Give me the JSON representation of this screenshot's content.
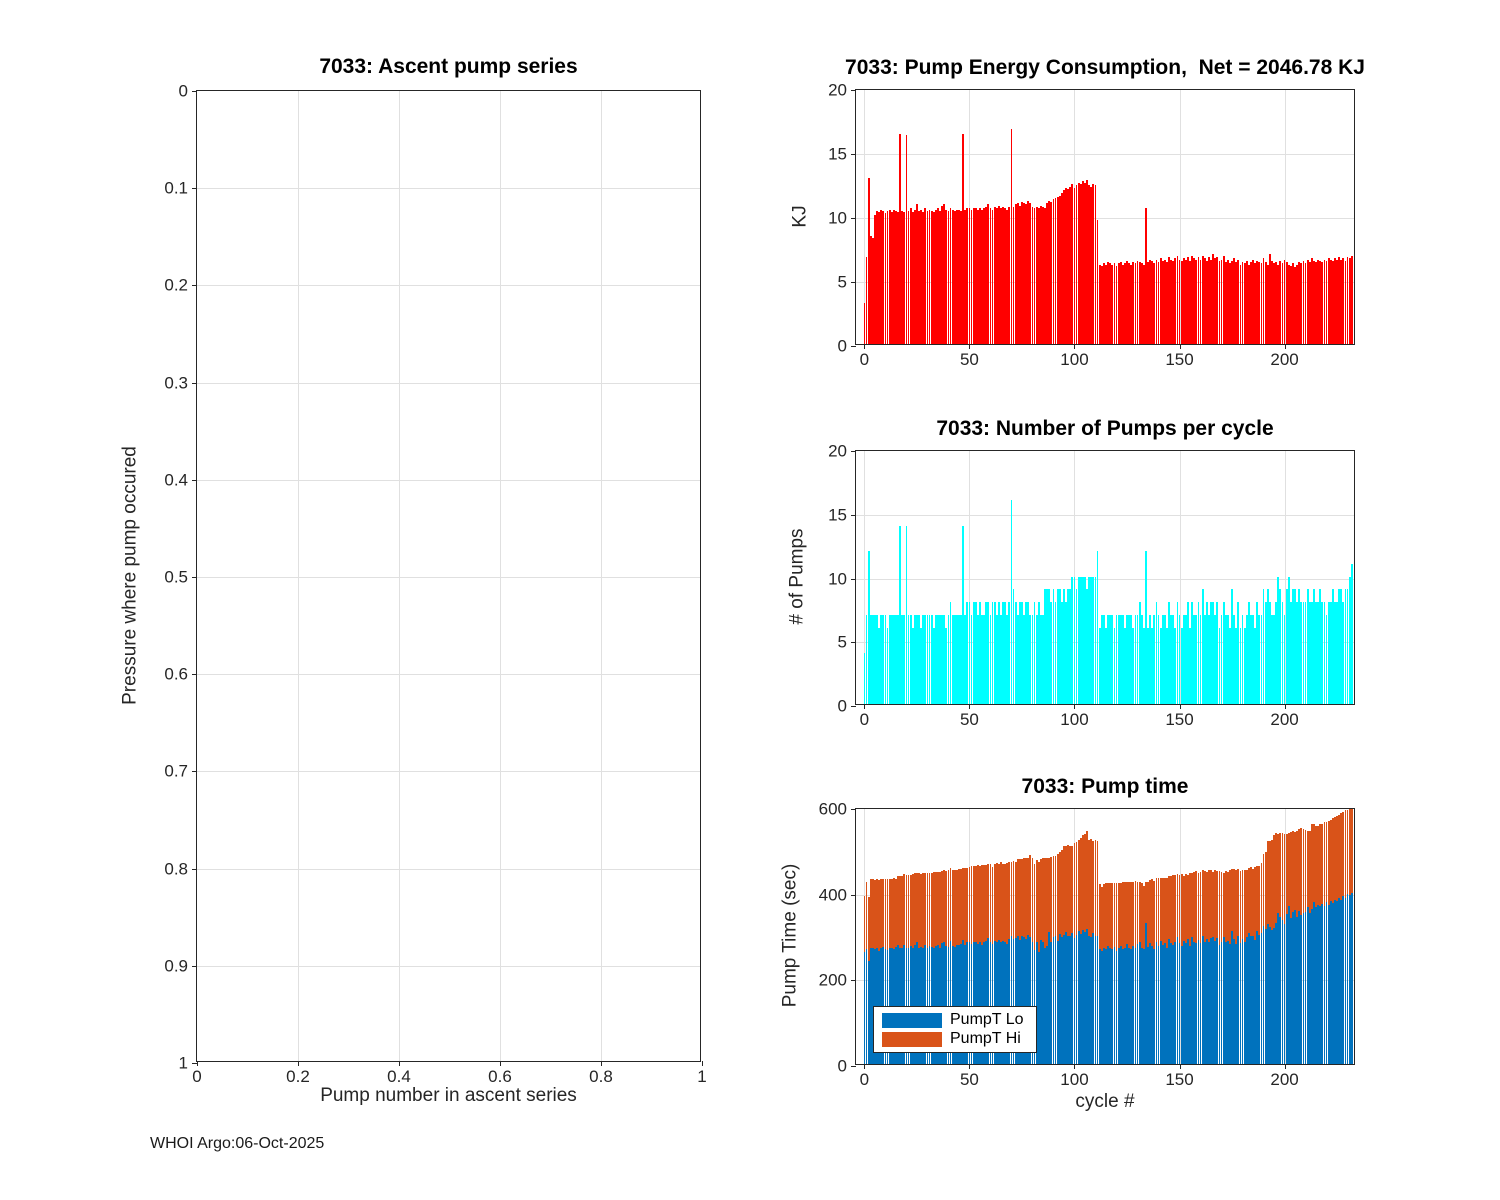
{
  "figure": {
    "footer": "WHOI Argo:06-Oct-2025"
  },
  "chart_data": [
    {
      "type": "scatter",
      "title": "7033: Ascent pump series",
      "xlabel": "Pump number in ascent series",
      "ylabel": "Pressure where pump occured",
      "xlim": [
        0,
        1
      ],
      "ylim": [
        0,
        1
      ],
      "y_reversed": true,
      "grid": true,
      "xticks": [
        0,
        0.2,
        0.4,
        0.6,
        0.8,
        1
      ],
      "yticks": [
        0,
        0.1,
        0.2,
        0.3,
        0.4,
        0.5,
        0.6,
        0.7,
        0.8,
        0.9,
        1
      ],
      "points": []
    },
    {
      "type": "bar",
      "title": "7033: Pump Energy Consumption,  Net = 2046.78 KJ",
      "ylabel": "KJ",
      "net_kj": 2046.78,
      "bar_color": "#ff0000",
      "xlim": [
        -4,
        234
      ],
      "ylim": [
        0,
        20
      ],
      "grid": true,
      "xticks": [
        0,
        50,
        100,
        150,
        200
      ],
      "yticks": [
        0,
        5,
        10,
        15,
        20
      ],
      "values": [
        3.2,
        6.8,
        13.0,
        8.4,
        8.3,
        10.1,
        10.4,
        10.3,
        10.5,
        10.4,
        10.2,
        10.4,
        10.5,
        10.3,
        10.5,
        10.4,
        10.3,
        16.4,
        10.4,
        10.3,
        16.3,
        10.4,
        10.6,
        10.3,
        10.5,
        10.9,
        10.4,
        10.5,
        10.3,
        10.6,
        10.4,
        10.5,
        10.4,
        10.3,
        10.5,
        10.6,
        10.4,
        10.8,
        10.9,
        10.5,
        10.4,
        10.6,
        10.5,
        10.4,
        10.5,
        10.5,
        10.4,
        16.4,
        10.5,
        10.6,
        10.6,
        10.5,
        10.6,
        10.6,
        10.5,
        10.6,
        10.5,
        10.6,
        10.7,
        10.9,
        10.6,
        10.5,
        10.7,
        10.6,
        10.8,
        10.6,
        10.7,
        10.6,
        10.5,
        10.7,
        16.8,
        10.7,
        10.9,
        11.0,
        10.8,
        11.1,
        11.0,
        10.9,
        11.2,
        11.0,
        10.7,
        10.6,
        10.7,
        10.6,
        10.8,
        10.7,
        10.6,
        11.0,
        11.2,
        11.1,
        11.3,
        11.4,
        11.5,
        11.6,
        11.8,
        12.0,
        12.2,
        12.1,
        12.3,
        12.5,
        12.2,
        12.4,
        12.6,
        12.5,
        12.7,
        12.6,
        12.8,
        12.4,
        12.3,
        12.5,
        12.4,
        9.7,
        6.2,
        6.1,
        6.3,
        6.2,
        6.4,
        6.3,
        6.2,
        6.3,
        6.1,
        6.3,
        6.4,
        6.2,
        6.3,
        6.5,
        6.3,
        6.2,
        6.4,
        6.3,
        6.5,
        6.4,
        6.3,
        6.2,
        10.6,
        6.4,
        6.6,
        6.5,
        6.3,
        6.6,
        6.4,
        6.7,
        6.5,
        6.6,
        6.4,
        6.8,
        6.6,
        6.5,
        6.7,
        6.9,
        6.6,
        6.5,
        6.7,
        6.6,
        6.8,
        6.5,
        6.9,
        6.7,
        6.6,
        6.8,
        6.6,
        6.9,
        6.7,
        6.5,
        6.8,
        6.6,
        7.0,
        6.7,
        6.8,
        6.5,
        6.6,
        6.9,
        6.4,
        6.6,
        6.3,
        6.5,
        6.7,
        6.4,
        6.6,
        6.2,
        6.4,
        6.3,
        6.5,
        6.2,
        6.4,
        6.6,
        6.3,
        6.5,
        6.4,
        6.3,
        6.7,
        6.4,
        6.2,
        7.0,
        6.5,
        6.3,
        6.4,
        6.2,
        6.5,
        6.3,
        6.6,
        6.4,
        6.2,
        6.1,
        6.3,
        6.0,
        6.2,
        6.4,
        6.3,
        6.5,
        6.3,
        6.6,
        6.4,
        6.7,
        6.5,
        6.4,
        6.6,
        6.5,
        6.4,
        6.6,
        6.5,
        6.7,
        6.6,
        6.5,
        6.7,
        6.6,
        6.8,
        6.6,
        6.7,
        6.5,
        6.8,
        6.7,
        6.9
      ]
    },
    {
      "type": "bar",
      "title": "7033: Number of Pumps per cycle",
      "ylabel": "# of Pumps",
      "bar_color": "#00ffff",
      "xlim": [
        -4,
        234
      ],
      "ylim": [
        0,
        20
      ],
      "grid": true,
      "xticks": [
        0,
        50,
        100,
        150,
        200
      ],
      "yticks": [
        0,
        5,
        10,
        15,
        20
      ],
      "values": [
        4,
        7,
        12,
        7,
        7,
        7,
        7,
        6,
        7,
        7,
        7,
        6,
        7,
        7,
        7,
        7,
        7,
        14,
        7,
        7,
        14,
        7,
        7,
        6,
        7,
        7,
        7,
        6,
        7,
        7,
        7,
        7,
        7,
        6,
        7,
        7,
        7,
        7,
        7,
        6,
        7,
        8,
        7,
        7,
        7,
        7,
        7,
        14,
        7,
        8,
        8,
        7,
        8,
        8,
        7,
        8,
        7,
        7,
        8,
        8,
        7,
        8,
        8,
        7,
        8,
        7,
        8,
        8,
        7,
        8,
        16,
        9,
        8,
        7,
        8,
        8,
        7,
        8,
        8,
        7,
        7,
        8,
        7,
        8,
        7,
        7,
        9,
        9,
        9,
        8,
        9,
        8,
        9,
        9,
        8,
        9,
        8,
        9,
        9,
        10,
        10,
        9,
        10,
        10,
        10,
        10,
        9,
        10,
        10,
        10,
        10,
        12,
        6,
        7,
        7,
        6,
        7,
        7,
        7,
        6,
        7,
        7,
        7,
        7,
        6,
        7,
        7,
        7,
        6,
        7,
        7,
        8,
        7,
        6,
        12,
        6,
        7,
        6,
        7,
        8,
        7,
        6,
        7,
        7,
        6,
        8,
        7,
        7,
        6,
        8,
        7,
        6,
        7,
        7,
        8,
        6,
        8,
        7,
        7,
        8,
        7,
        9,
        7,
        8,
        7,
        8,
        8,
        7,
        8,
        6,
        7,
        8,
        7,
        7,
        6,
        9,
        7,
        6,
        8,
        6,
        7,
        6,
        7,
        8,
        7,
        7,
        6,
        8,
        7,
        7,
        9,
        8,
        9,
        8,
        7,
        7,
        8,
        10,
        9,
        8,
        7,
        9,
        10,
        8,
        9,
        9,
        8,
        9,
        8,
        8,
        8,
        9,
        8,
        8,
        9,
        8,
        8,
        9,
        8,
        8,
        7,
        8,
        8,
        9,
        8,
        8,
        9,
        9,
        8,
        9,
        9,
        10,
        11
      ]
    },
    {
      "type": "stacked_bar",
      "title": "7033: Pump time",
      "xlabel": "cycle #",
      "ylabel": "Pump Time (sec)",
      "xlim": [
        -4,
        234
      ],
      "ylim": [
        0,
        600
      ],
      "grid": true,
      "xticks": [
        0,
        50,
        100,
        150,
        200
      ],
      "yticks": [
        0,
        200,
        400,
        600
      ],
      "legend": {
        "position": "southwest",
        "entries": [
          "PumpT Lo",
          "PumpT Hi"
        ]
      },
      "series": [
        {
          "name": "PumpT Lo",
          "color": "#0072bd",
          "values": [
            262,
            268,
            240,
            272,
            270,
            268,
            272,
            265,
            270,
            274,
            268,
            266,
            272,
            270,
            268,
            273,
            278,
            271,
            270,
            279,
            272,
            270,
            276,
            272,
            278,
            284,
            272,
            274,
            270,
            278,
            272,
            276,
            274,
            270,
            276,
            278,
            272,
            282,
            286,
            276,
            274,
            288,
            276,
            274,
            278,
            278,
            280,
            290,
            278,
            284,
            284,
            280,
            284,
            286,
            280,
            284,
            278,
            284,
            288,
            294,
            284,
            280,
            288,
            284,
            290,
            284,
            288,
            284,
            280,
            292,
            300,
            292,
            294,
            298,
            290,
            300,
            296,
            292,
            302,
            296,
            286,
            266,
            286,
            262,
            290,
            286,
            270,
            276,
            308,
            284,
            296,
            300,
            288,
            304,
            296,
            302,
            308,
            300,
            298,
            306,
            294,
            302,
            310,
            304,
            314,
            308,
            316,
            300,
            296,
            306,
            300,
            298,
            268,
            264,
            272,
            268,
            276,
            272,
            268,
            274,
            264,
            272,
            276,
            268,
            272,
            280,
            272,
            268,
            276,
            272,
            280,
            286,
            272,
            268,
            330,
            274,
            282,
            276,
            268,
            284,
            276,
            288,
            278,
            282,
            272,
            292,
            282,
            278,
            286,
            296,
            282,
            276,
            288,
            282,
            292,
            276,
            296,
            286,
            282,
            290,
            282,
            300,
            286,
            292,
            284,
            294,
            296,
            288,
            294,
            278,
            284,
            296,
            286,
            288,
            280,
            310,
            292,
            280,
            298,
            282,
            292,
            284,
            296,
            306,
            298,
            300,
            290,
            310,
            302,
            306,
            322,
            316,
            328,
            320,
            312,
            318,
            330,
            352,
            344,
            336,
            326,
            350,
            368,
            342,
            356,
            360,
            344,
            358,
            348,
            352,
            356,
            366,
            352,
            362,
            378,
            366,
            372,
            368,
            374,
            370,
            378,
            372,
            380,
            376,
            384,
            380,
            388,
            384,
            392,
            388,
            396,
            394,
            400
          ]
        },
        {
          "name": "PumpT Hi",
          "color": "#d95319",
          "values": [
            130,
            158,
            150,
            160,
            162,
            162,
            160,
            165,
            162,
            158,
            164,
            166,
            160,
            162,
            166,
            160,
            162,
            168,
            170,
            164,
            170,
            172,
            166,
            172,
            168,
            162,
            174,
            170,
            176,
            168,
            174,
            170,
            172,
            178,
            172,
            170,
            176,
            168,
            166,
            174,
            178,
            170,
            176,
            180,
            174,
            178,
            176,
            168,
            180,
            174,
            176,
            182,
            178,
            176,
            184,
            178,
            186,
            180,
            176,
            172,
            184,
            180,
            178,
            186,
            178,
            188,
            180,
            184,
            190,
            180,
            172,
            182,
            178,
            180,
            188,
            178,
            186,
            190,
            180,
            192,
            196,
            200,
            190,
            210,
            188,
            196,
            212,
            206,
            172,
            200,
            190,
            186,
            202,
            192,
            204,
            208,
            200,
            212,
            210,
            204,
            222,
            216,
            212,
            224,
            220,
            230,
            228,
            222,
            230,
            214,
            224,
            222,
            152,
            150,
            148,
            154,
            146,
            150,
            154,
            148,
            158,
            150,
            146,
            156,
            152,
            144,
            154,
            158,
            148,
            156,
            146,
            140,
            150,
            148,
            96,
            152,
            148,
            156,
            160,
            150,
            158,
            146,
            156,
            152,
            162,
            148,
            158,
            164,
            156,
            148,
            160,
            168,
            152,
            162,
            150,
            170,
            150,
            162,
            168,
            156,
            166,
            152,
            164,
            156,
            170,
            158,
            152,
            166,
            156,
            172,
            164,
            150,
            164,
            160,
            172,
            146,
            164,
            172,
            158,
            168,
            160,
            170,
            158,
            152,
            162,
            156,
            170,
            152,
            160,
            164,
            168,
            180,
            192,
            200,
            210,
            216,
            210,
            186,
            196,
            204,
            212,
            188,
            172,
            200,
            188,
            182,
            200,
            190,
            204,
            196,
            190,
            178,
            192,
            198,
            182,
            190,
            184,
            192,
            186,
            196,
            188,
            196,
            190,
            198,
            192,
            200,
            194,
            202,
            196,
            204,
            198,
            202,
            200
          ]
        }
      ]
    }
  ]
}
